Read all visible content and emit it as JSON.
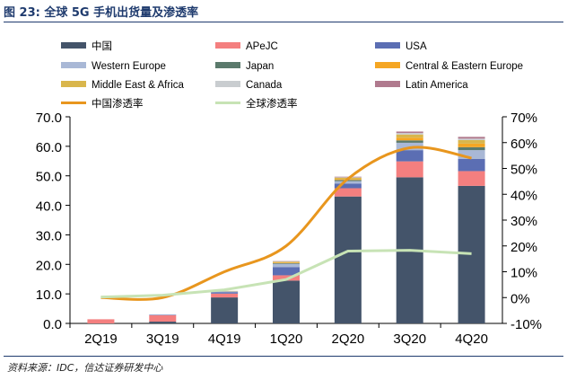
{
  "figure": {
    "title": "图 23:  全球 5G 手机出货量及渗透率",
    "source": "资料来源：IDC，信达证券研发中心"
  },
  "chart_data": {
    "type": "bar",
    "stacked": true,
    "categories": [
      "2Q19",
      "3Q19",
      "4Q19",
      "1Q20",
      "2Q20",
      "3Q20",
      "4Q20"
    ],
    "y_left": {
      "ylim": [
        0,
        70
      ],
      "ticks": [
        "0.0",
        "10.0",
        "20.0",
        "30.0",
        "40.0",
        "50.0",
        "60.0",
        "70.0"
      ]
    },
    "y_right": {
      "ylim": [
        -10,
        70
      ],
      "ticks": [
        "-10%",
        "0%",
        "10%",
        "20%",
        "30%",
        "40%",
        "50%",
        "60%",
        "70%"
      ]
    },
    "series": [
      {
        "name": "中国",
        "color": "#44546a",
        "values": [
          0.0,
          0.6,
          8.8,
          14.5,
          43.0,
          49.5,
          46.6
        ]
      },
      {
        "name": "APeJC",
        "color": "#f47f7f",
        "values": [
          1.4,
          2.2,
          1.3,
          1.8,
          2.8,
          5.4,
          5.0
        ]
      },
      {
        "name": "USA",
        "color": "#5b6eb3",
        "values": [
          0.0,
          0.1,
          0.5,
          2.8,
          1.6,
          3.8,
          4.1
        ]
      },
      {
        "name": "Western Europe",
        "color": "#a9b8d6",
        "values": [
          0.0,
          0.1,
          0.3,
          1.1,
          0.8,
          2.5,
          3.0
        ]
      },
      {
        "name": "Japan",
        "color": "#5b7a6c",
        "values": [
          0.0,
          0.0,
          0.0,
          0.2,
          0.4,
          0.8,
          1.0
        ]
      },
      {
        "name": "Central & Eastern Europe",
        "color": "#f5a623",
        "values": [
          0.0,
          0.0,
          0.0,
          0.2,
          0.3,
          0.9,
          1.2
        ]
      },
      {
        "name": "Middle East & Africa",
        "color": "#d9b64c",
        "values": [
          0.0,
          0.0,
          0.1,
          0.3,
          0.5,
          1.1,
          1.2
        ]
      },
      {
        "name": "Canada",
        "color": "#c9cdd0",
        "values": [
          0.0,
          0.0,
          0.0,
          0.1,
          0.1,
          0.5,
          0.5
        ]
      },
      {
        "name": "Latin America",
        "color": "#b07a8e",
        "values": [
          0.0,
          0.0,
          0.0,
          0.1,
          0.2,
          0.5,
          0.6
        ]
      }
    ],
    "lines": [
      {
        "name": "中国渗透率",
        "color": "#e8961e",
        "axis": "right",
        "values": [
          0.0,
          0.0,
          10.0,
          20.0,
          46.0,
          58.0,
          54.0
        ]
      },
      {
        "name": "全球渗透率",
        "color": "#c7e3b5",
        "axis": "right",
        "values": [
          0.2,
          0.9,
          3.0,
          7.0,
          18.0,
          18.3,
          17.0
        ]
      }
    ],
    "legend": "top"
  }
}
